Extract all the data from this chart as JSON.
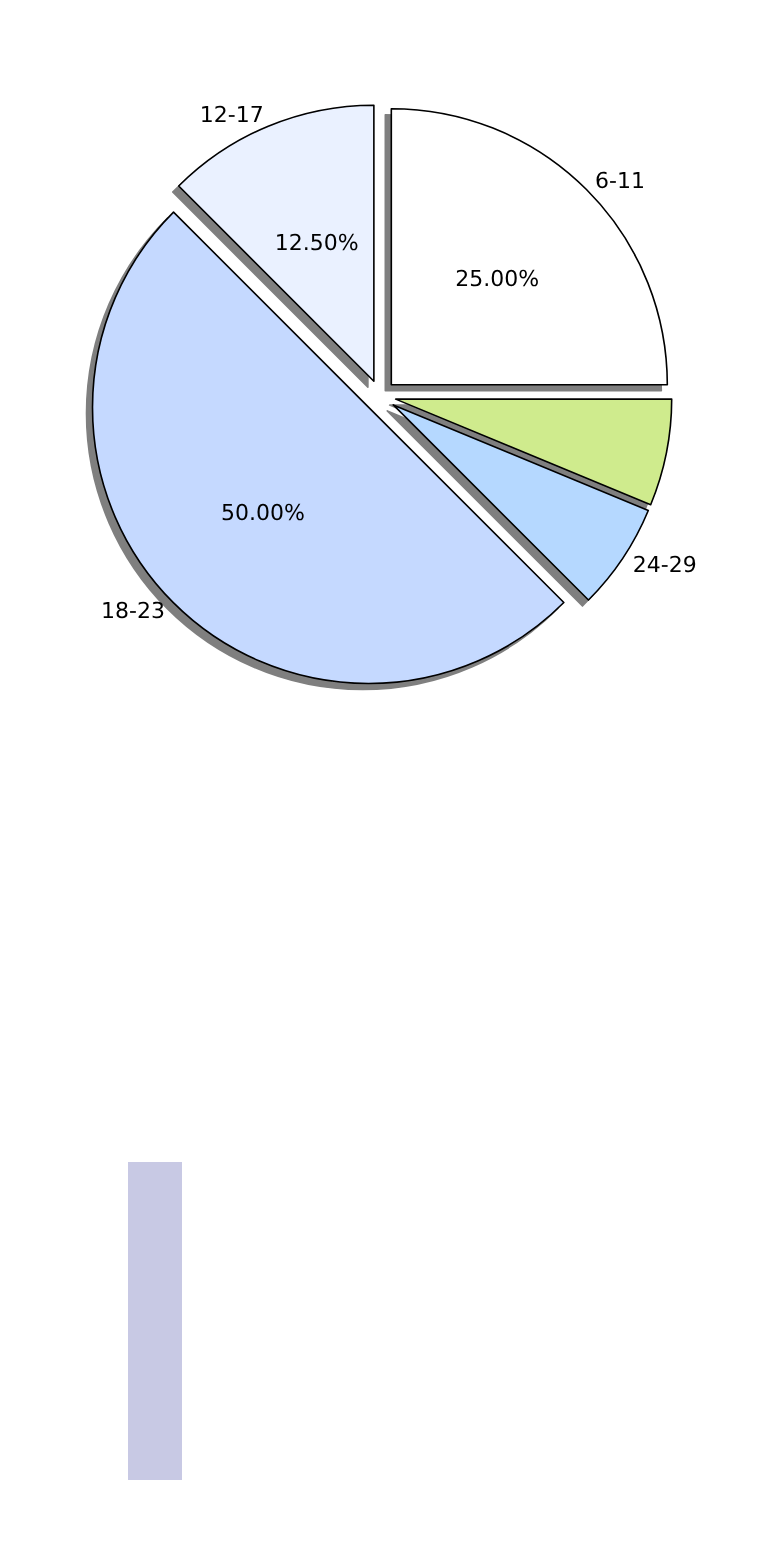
{
  "chart_data": {
    "type": "pie",
    "categories": [
      "6-11",
      null,
      "24-29",
      "18-23",
      "12-17"
    ],
    "values": [
      25,
      6.25,
      6.25,
      50,
      12.5
    ],
    "colors": [
      "#ffffff",
      "#cfeb8d",
      "#b5d8ff",
      "#c5d9ff",
      "#eaf1ff"
    ],
    "value_labels": [
      "25.00%",
      null,
      null,
      "50.00%",
      "12.50%"
    ],
    "legend": false
  }
}
